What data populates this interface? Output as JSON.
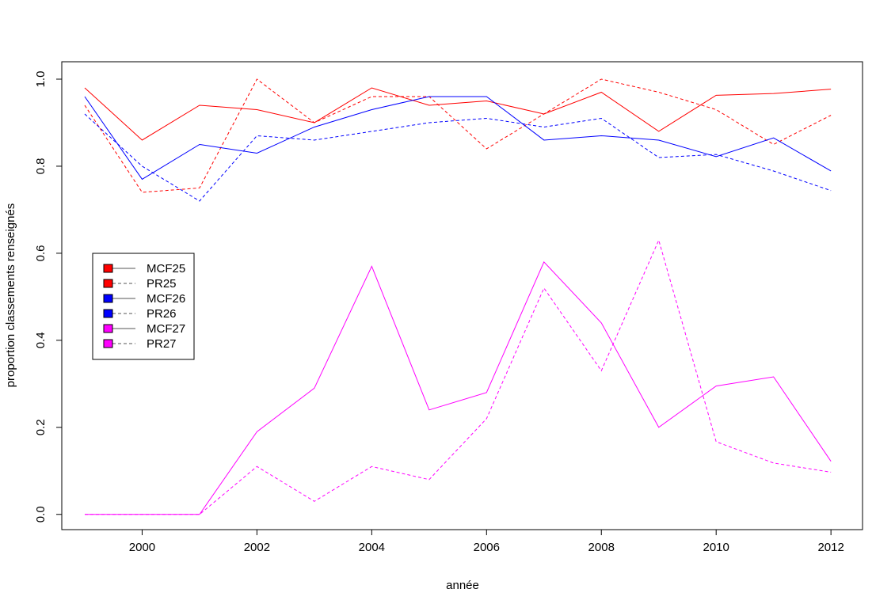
{
  "chart_data": {
    "type": "line",
    "title": "",
    "xlabel": "année",
    "ylabel": "proportion classements renseignés",
    "xlim": [
      1998.6,
      2012.55
    ],
    "ylim": [
      -0.035,
      1.04
    ],
    "x_ticks": [
      2000,
      2002,
      2004,
      2006,
      2008,
      2010,
      2012
    ],
    "y_ticks": [
      0.0,
      0.2,
      0.4,
      0.6,
      0.8,
      1.0
    ],
    "y_tick_labels": [
      "0.0",
      "0.2",
      "0.4",
      "0.6",
      "0.8",
      "1.0"
    ],
    "grid": false,
    "legend_position": "left",
    "x": [
      1999,
      2000,
      2001,
      2002,
      2003,
      2004,
      2005,
      2006,
      2007,
      2008,
      2009,
      2010,
      2011,
      2012
    ],
    "series": [
      {
        "name": "MCF25",
        "color": "#ff0000",
        "dash": "solid",
        "values": [
          0.98,
          0.86,
          0.94,
          0.93,
          0.9,
          0.98,
          0.94,
          0.95,
          0.92,
          0.97,
          0.88,
          0.963,
          0.967,
          0.977
        ]
      },
      {
        "name": "PR25",
        "color": "#ff0000",
        "dash": "dashed",
        "values": [
          0.94,
          0.74,
          0.75,
          1.0,
          0.9,
          0.96,
          0.96,
          0.84,
          0.92,
          1.0,
          0.97,
          0.93,
          0.85,
          0.917
        ]
      },
      {
        "name": "MCF26",
        "color": "#0000ff",
        "dash": "solid",
        "values": [
          0.96,
          0.77,
          0.85,
          0.83,
          0.89,
          0.93,
          0.96,
          0.96,
          0.86,
          0.87,
          0.86,
          0.822,
          0.865,
          0.789
        ]
      },
      {
        "name": "PR26",
        "color": "#0000ff",
        "dash": "dashed",
        "values": [
          0.92,
          0.8,
          0.72,
          0.87,
          0.86,
          0.88,
          0.9,
          0.91,
          0.89,
          0.91,
          0.82,
          0.827,
          0.789,
          0.744
        ]
      },
      {
        "name": "MCF27",
        "color": "#ff00ff",
        "dash": "solid",
        "values": [
          0.0,
          0.0,
          0.0,
          0.19,
          0.29,
          0.57,
          0.24,
          0.28,
          0.58,
          0.44,
          0.2,
          0.295,
          0.316,
          0.122
        ]
      },
      {
        "name": "PR27",
        "color": "#ff00ff",
        "dash": "dashed",
        "values": [
          0.0,
          0.0,
          0.0,
          0.11,
          0.03,
          0.11,
          0.08,
          0.22,
          0.52,
          0.33,
          0.63,
          0.167,
          0.118,
          0.097
        ]
      }
    ]
  }
}
